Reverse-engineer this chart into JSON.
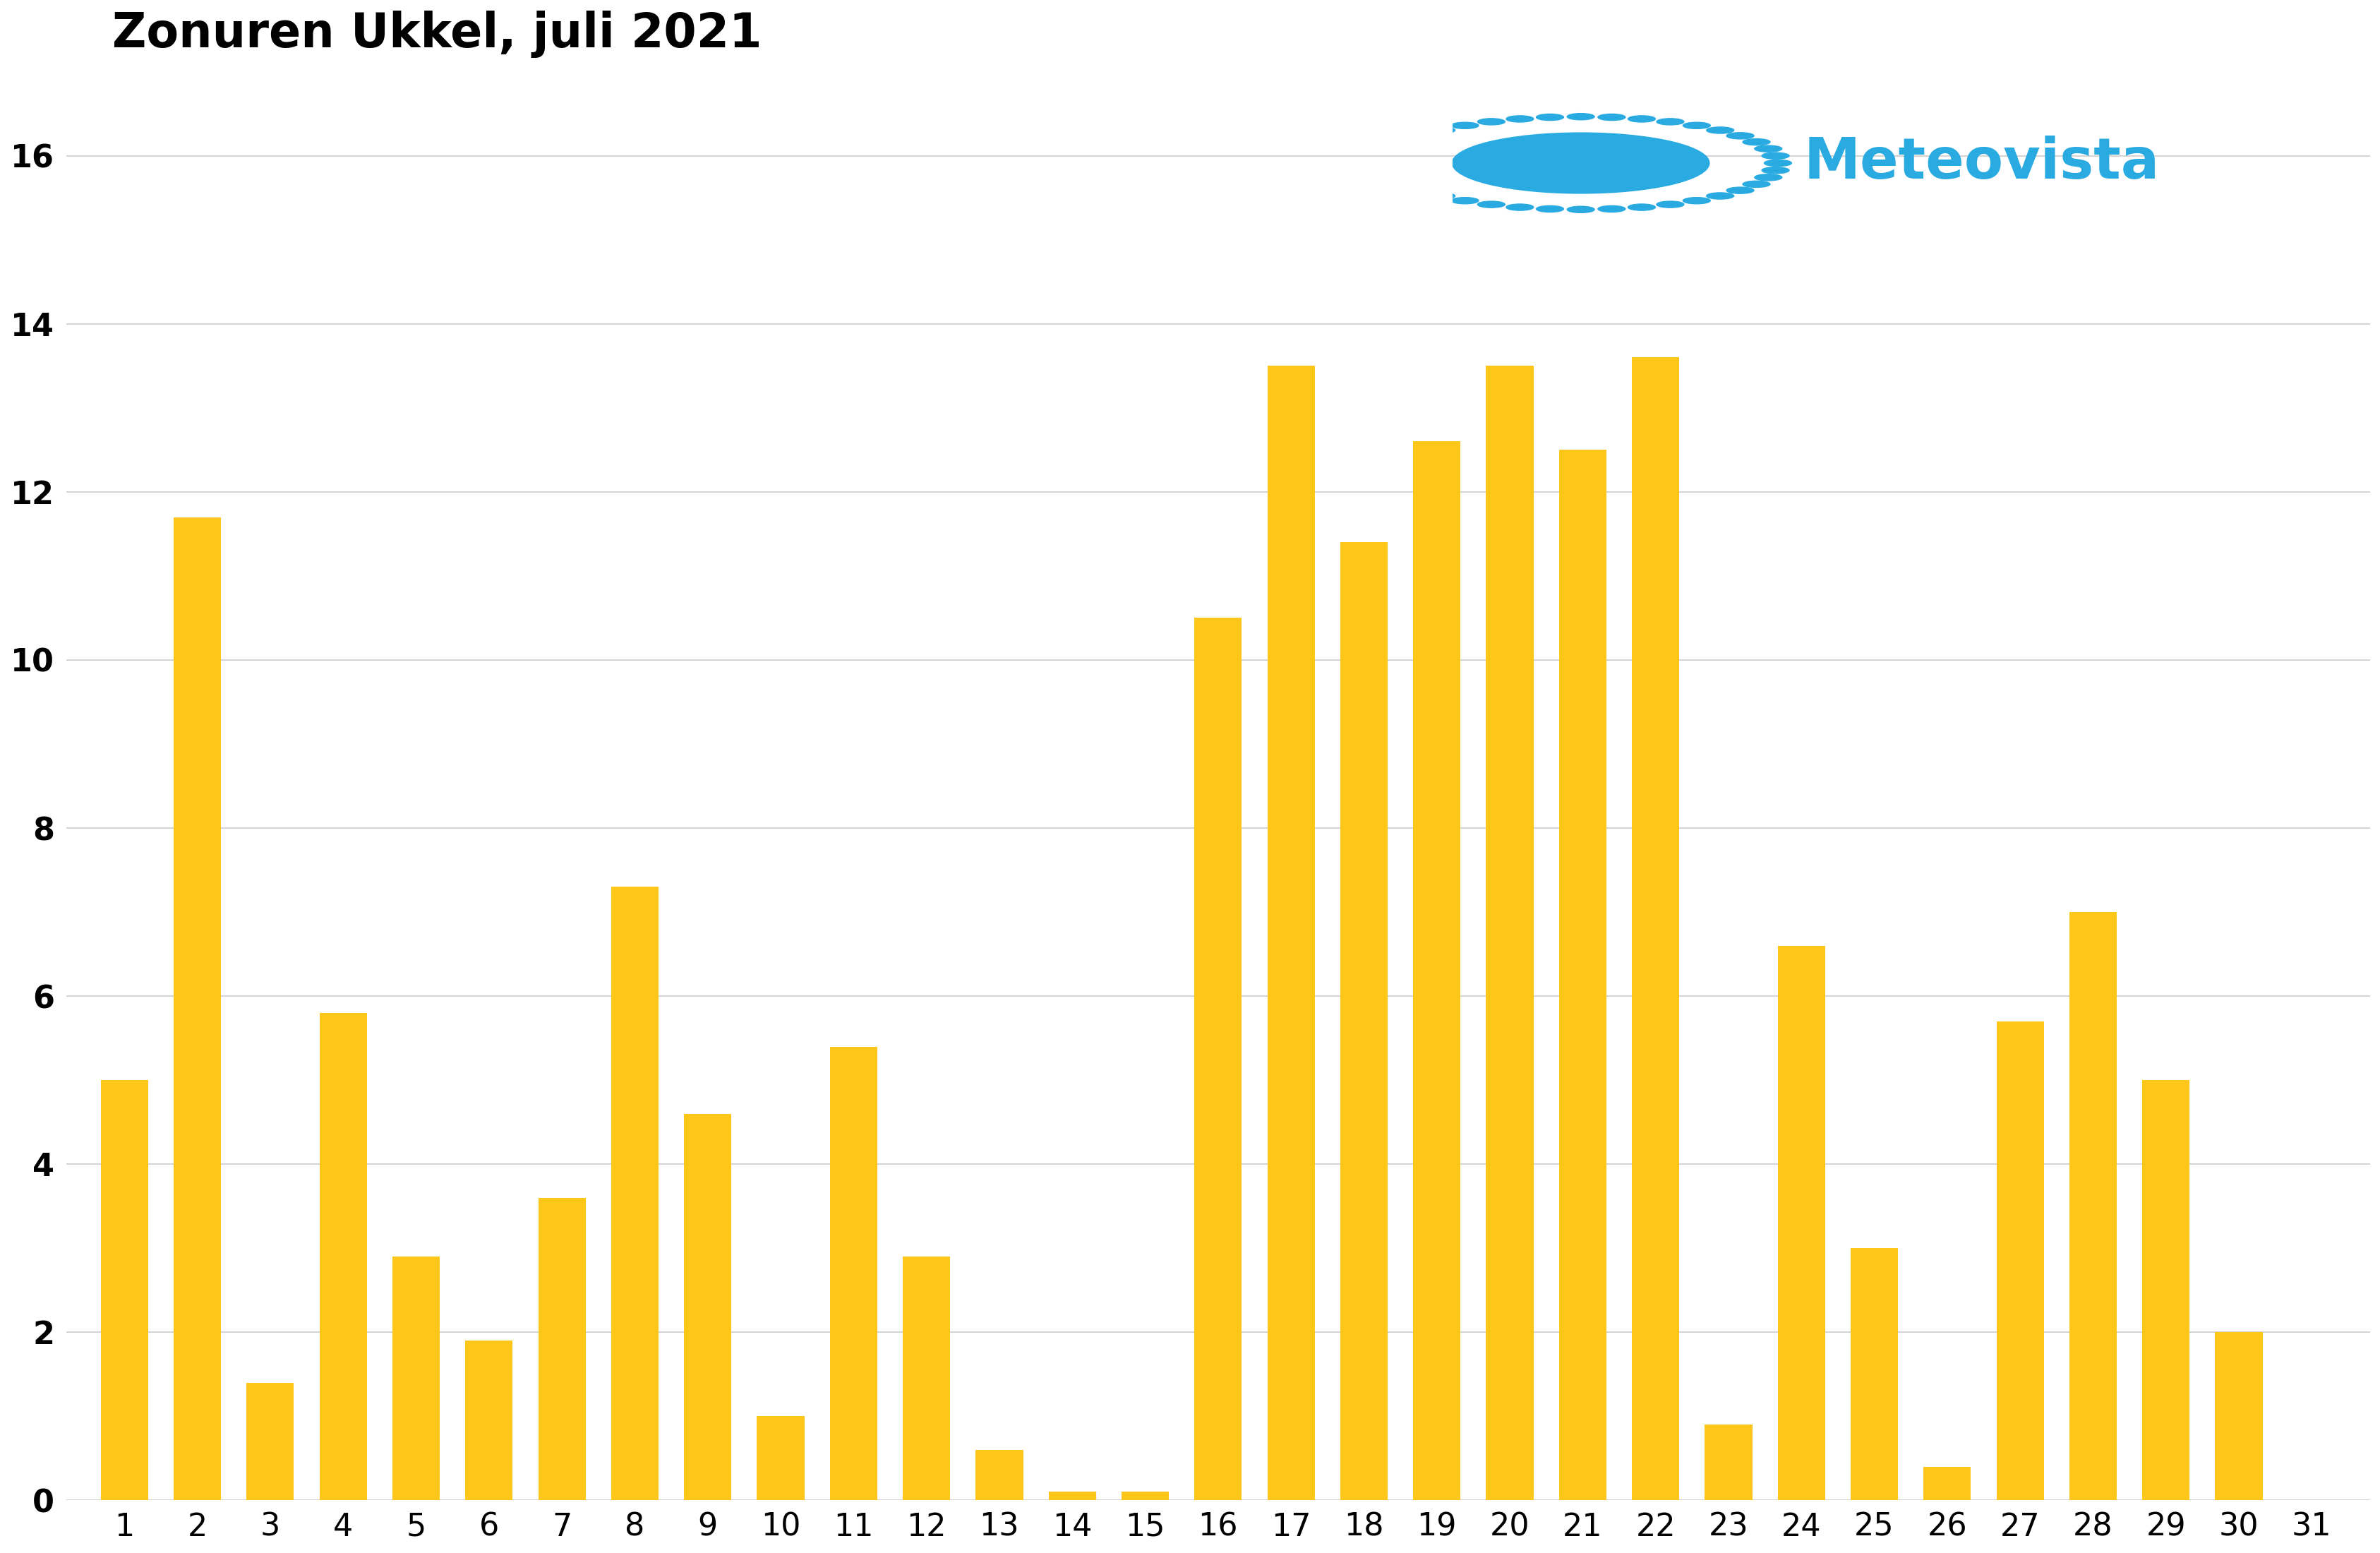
{
  "title": "Zonuren Ukkel, juli 2021",
  "bar_color": "#FFC61A",
  "background_color": "#ffffff",
  "values": [
    5.0,
    11.7,
    1.4,
    5.8,
    2.9,
    1.9,
    3.6,
    7.3,
    4.6,
    1.0,
    5.4,
    2.9,
    0.6,
    0.1,
    0.1,
    10.5,
    13.5,
    11.4,
    12.6,
    13.5,
    12.5,
    13.6,
    0.9,
    6.6,
    3.0,
    0.4,
    5.7,
    7.0,
    5.0,
    2.0,
    0.0
  ],
  "ylim": [
    0,
    17
  ],
  "yticks": [
    0,
    2,
    4,
    6,
    8,
    10,
    12,
    14,
    16
  ],
  "title_fontsize": 48,
  "tick_fontsize": 32,
  "logo_text": "Meteovista",
  "logo_text_color": "#29ABE2",
  "logo_text_fontsize": 58,
  "grid_color": "#cccccc",
  "sun_color": "#29ABE2"
}
